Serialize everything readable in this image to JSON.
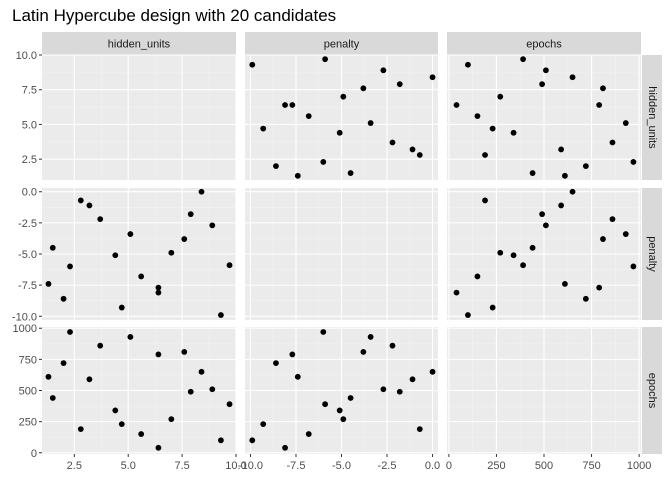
{
  "chart_data": {
    "type": "scatter",
    "title": "Latin Hypercube design with 20 candidates",
    "variables": [
      "hidden_units",
      "penalty",
      "epochs"
    ],
    "axes": {
      "hidden_units": {
        "ticks": [
          2.5,
          5.0,
          7.5,
          10.0
        ],
        "tick_labels": [
          "2.5",
          "5.0",
          "7.5",
          "10.0"
        ],
        "range": [
          1.0,
          10.0
        ]
      },
      "penalty": {
        "ticks": [
          -10.0,
          -7.5,
          -5.0,
          -2.5,
          0.0
        ],
        "tick_labels": [
          "-10.0",
          "-7.5",
          "-5.0",
          "-2.5",
          "0.0"
        ],
        "range": [
          -10.3,
          0.3
        ]
      },
      "epochs": {
        "ticks": [
          0,
          250,
          500,
          750,
          1000
        ],
        "tick_labels": [
          "0",
          "250",
          "500",
          "750",
          "1000"
        ],
        "range": [
          -10,
          1010
        ]
      }
    },
    "points": [
      {
        "hidden_units": 1.3,
        "penalty": -7.4,
        "epochs": 610
      },
      {
        "hidden_units": 1.5,
        "penalty": -4.5,
        "epochs": 440
      },
      {
        "hidden_units": 2.0,
        "penalty": -8.6,
        "epochs": 720
      },
      {
        "hidden_units": 2.3,
        "penalty": -6.0,
        "epochs": 970
      },
      {
        "hidden_units": 2.8,
        "penalty": -0.7,
        "epochs": 190
      },
      {
        "hidden_units": 3.2,
        "penalty": -1.1,
        "epochs": 590
      },
      {
        "hidden_units": 3.7,
        "penalty": -2.2,
        "epochs": 860
      },
      {
        "hidden_units": 4.4,
        "penalty": -5.1,
        "epochs": 340
      },
      {
        "hidden_units": 4.7,
        "penalty": -9.3,
        "epochs": 230
      },
      {
        "hidden_units": 5.1,
        "penalty": -3.4,
        "epochs": 930
      },
      {
        "hidden_units": 5.6,
        "penalty": -6.8,
        "epochs": 150
      },
      {
        "hidden_units": 6.4,
        "penalty": -7.7,
        "epochs": 790
      },
      {
        "hidden_units": 6.4,
        "penalty": -8.1,
        "epochs": 40
      },
      {
        "hidden_units": 7.0,
        "penalty": -4.9,
        "epochs": 270
      },
      {
        "hidden_units": 7.6,
        "penalty": -3.8,
        "epochs": 810
      },
      {
        "hidden_units": 7.9,
        "penalty": -1.8,
        "epochs": 490
      },
      {
        "hidden_units": 8.4,
        "penalty": 0.0,
        "epochs": 650
      },
      {
        "hidden_units": 8.9,
        "penalty": -2.7,
        "epochs": 510
      },
      {
        "hidden_units": 9.3,
        "penalty": -9.9,
        "epochs": 100
      },
      {
        "hidden_units": 9.7,
        "penalty": -5.9,
        "epochs": 390
      }
    ],
    "grid": true,
    "legend": "none"
  },
  "colors": {
    "panel_background": "#ebebeb",
    "grid_major": "#ffffff",
    "grid_minor": "#f2f2f2",
    "strip_background": "#d9d9d9",
    "point": "#000000",
    "tick": "#333333"
  }
}
